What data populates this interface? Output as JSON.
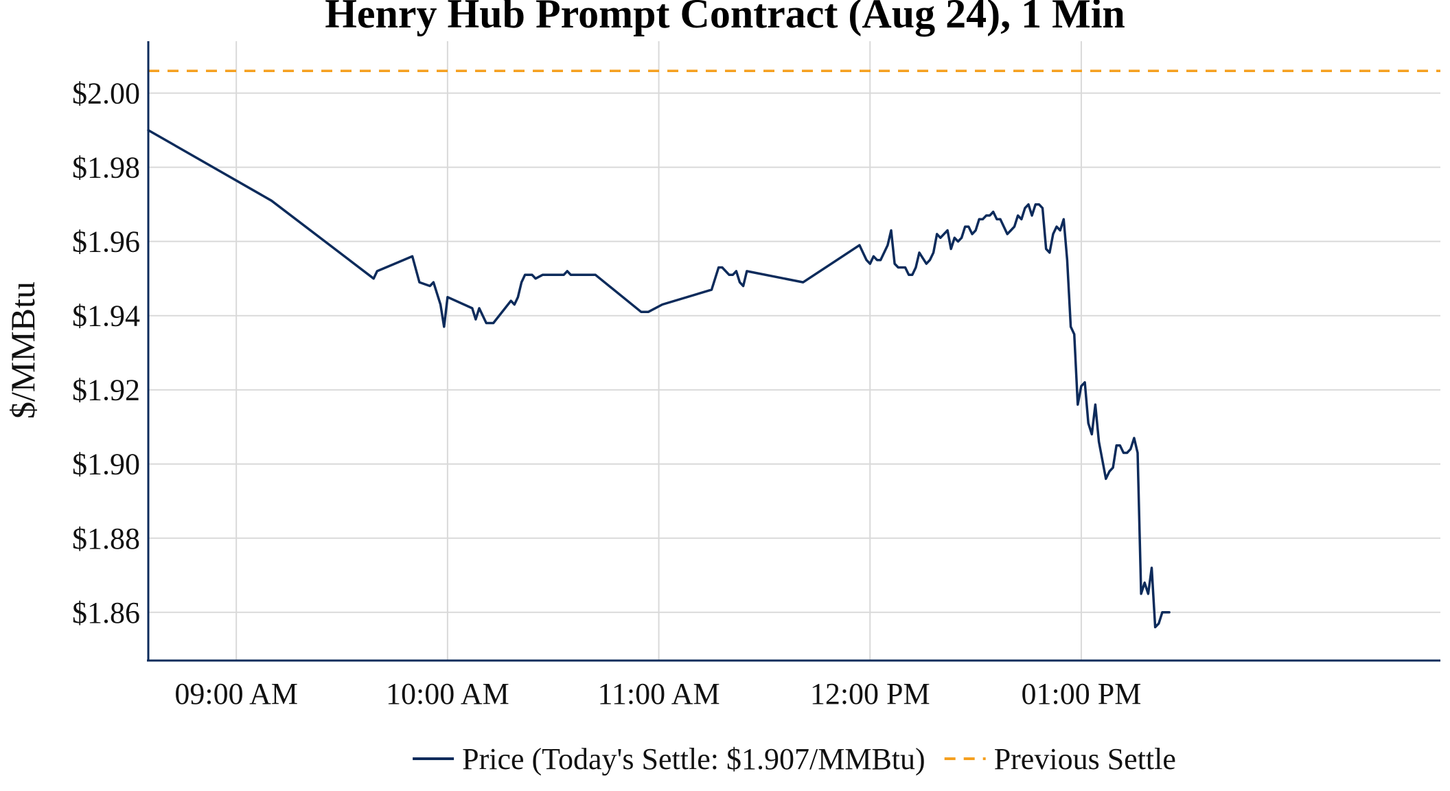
{
  "chart_data": {
    "type": "line",
    "title": "Henry Hub Prompt Contract (Aug 24), 1 Min",
    "ylabel": "$/MMBtu",
    "xlabel": "",
    "x_unit": "clock time, minutes past midnight",
    "xlim": [
      515,
      882
    ],
    "ylim": [
      1.847,
      2.014
    ],
    "x_ticks": [
      540,
      600,
      660,
      720,
      780
    ],
    "x_tick_labels": [
      "09:00 AM",
      "10:00 AM",
      "11:00 AM",
      "12:00 PM",
      "01:00 PM"
    ],
    "y_ticks": [
      1.86,
      1.88,
      1.9,
      1.92,
      1.94,
      1.96,
      1.98,
      2.0
    ],
    "y_tick_labels": [
      "$1.86",
      "$1.88",
      "$1.90",
      "$1.92",
      "$1.94",
      "$1.96",
      "$1.98",
      "$2.00"
    ],
    "grid": true,
    "legend_position": "bottom-center",
    "series": [
      {
        "name": "Price (Today's Settle: $1.907/MMBtu)",
        "color": "#0d2b5b",
        "style": "solid",
        "points": [
          [
            515,
            1.99
          ],
          [
            550,
            1.971
          ],
          [
            579,
            1.95
          ],
          [
            580,
            1.952
          ],
          [
            590,
            1.956
          ],
          [
            592,
            1.949
          ],
          [
            595,
            1.948
          ],
          [
            596,
            1.949
          ],
          [
            598,
            1.943
          ],
          [
            599,
            1.937
          ],
          [
            600,
            1.945
          ],
          [
            607,
            1.942
          ],
          [
            608,
            1.939
          ],
          [
            609,
            1.942
          ],
          [
            611,
            1.938
          ],
          [
            613,
            1.938
          ],
          [
            618,
            1.944
          ],
          [
            619,
            1.943
          ],
          [
            620,
            1.945
          ],
          [
            621,
            1.949
          ],
          [
            622,
            1.951
          ],
          [
            624,
            1.951
          ],
          [
            625,
            1.95
          ],
          [
            627,
            1.951
          ],
          [
            633,
            1.951
          ],
          [
            634,
            1.952
          ],
          [
            635,
            1.951
          ],
          [
            642,
            1.951
          ],
          [
            655,
            1.941
          ],
          [
            657,
            1.941
          ],
          [
            661,
            1.943
          ],
          [
            675,
            1.947
          ],
          [
            677,
            1.953
          ],
          [
            678,
            1.953
          ],
          [
            680,
            1.951
          ],
          [
            681,
            1.951
          ],
          [
            682,
            1.952
          ],
          [
            683,
            1.949
          ],
          [
            684,
            1.948
          ],
          [
            685,
            1.952
          ],
          [
            701,
            1.949
          ],
          [
            717,
            1.959
          ],
          [
            719,
            1.955
          ],
          [
            720,
            1.954
          ],
          [
            721,
            1.956
          ],
          [
            722,
            1.955
          ],
          [
            723,
            1.955
          ],
          [
            725,
            1.959
          ],
          [
            726,
            1.963
          ],
          [
            727,
            1.954
          ],
          [
            728,
            1.953
          ],
          [
            730,
            1.953
          ],
          [
            731,
            1.951
          ],
          [
            732,
            1.951
          ],
          [
            733,
            1.953
          ],
          [
            734,
            1.957
          ],
          [
            736,
            1.954
          ],
          [
            737,
            1.955
          ],
          [
            738,
            1.957
          ],
          [
            739,
            1.962
          ],
          [
            740,
            1.961
          ],
          [
            741,
            1.962
          ],
          [
            742,
            1.963
          ],
          [
            743,
            1.958
          ],
          [
            744,
            1.961
          ],
          [
            745,
            1.96
          ],
          [
            746,
            1.961
          ],
          [
            747,
            1.964
          ],
          [
            748,
            1.964
          ],
          [
            749,
            1.962
          ],
          [
            750,
            1.963
          ],
          [
            751,
            1.966
          ],
          [
            752,
            1.966
          ],
          [
            753,
            1.967
          ],
          [
            754,
            1.967
          ],
          [
            755,
            1.968
          ],
          [
            756,
            1.966
          ],
          [
            757,
            1.966
          ],
          [
            759,
            1.962
          ],
          [
            760,
            1.963
          ],
          [
            761,
            1.964
          ],
          [
            762,
            1.967
          ],
          [
            763,
            1.966
          ],
          [
            764,
            1.969
          ],
          [
            765,
            1.97
          ],
          [
            766,
            1.967
          ],
          [
            767,
            1.97
          ],
          [
            768,
            1.97
          ],
          [
            769,
            1.969
          ],
          [
            770,
            1.958
          ],
          [
            771,
            1.957
          ],
          [
            772,
            1.962
          ],
          [
            773,
            1.964
          ],
          [
            774,
            1.963
          ],
          [
            775,
            1.966
          ],
          [
            776,
            1.955
          ],
          [
            777,
            1.937
          ],
          [
            778,
            1.935
          ],
          [
            779,
            1.916
          ],
          [
            780,
            1.921
          ],
          [
            781,
            1.922
          ],
          [
            782,
            1.911
          ],
          [
            783,
            1.908
          ],
          [
            784,
            1.916
          ],
          [
            785,
            1.906
          ],
          [
            786,
            1.901
          ],
          [
            787,
            1.896
          ],
          [
            788,
            1.898
          ],
          [
            789,
            1.899
          ],
          [
            790,
            1.905
          ],
          [
            791,
            1.905
          ],
          [
            792,
            1.903
          ],
          [
            793,
            1.903
          ],
          [
            794,
            1.904
          ],
          [
            795,
            1.907
          ],
          [
            796,
            1.903
          ],
          [
            797,
            1.865
          ],
          [
            798,
            1.868
          ],
          [
            799,
            1.865
          ],
          [
            800,
            1.872
          ],
          [
            801,
            1.856
          ],
          [
            802,
            1.857
          ],
          [
            803,
            1.86
          ],
          [
            805,
            1.86
          ]
        ]
      },
      {
        "name": "Previous Settle",
        "color": "#f5a020",
        "style": "dashed",
        "y": 2.006
      }
    ]
  }
}
